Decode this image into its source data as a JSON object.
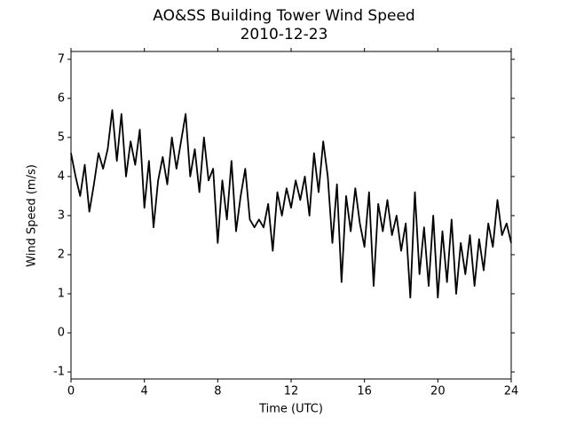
{
  "chart_data": {
    "type": "line",
    "title": "AO&SS Building Tower Wind Speed",
    "subtitle": "2010-12-23",
    "x_label": "Time (UTC)",
    "y_label": "Wind Speed (m/s)",
    "x": [
      0,
      0.25,
      0.5,
      0.75,
      1,
      1.25,
      1.5,
      1.75,
      2,
      2.25,
      2.5,
      2.75,
      3,
      3.25,
      3.5,
      3.75,
      4,
      4.25,
      4.5,
      4.75,
      5,
      5.25,
      5.5,
      5.75,
      6,
      6.25,
      6.5,
      6.75,
      7,
      7.25,
      7.5,
      7.75,
      8,
      8.25,
      8.5,
      8.75,
      9,
      9.25,
      9.5,
      9.75,
      10,
      10.25,
      10.5,
      10.75,
      11,
      11.25,
      11.5,
      11.75,
      12,
      12.25,
      12.5,
      12.75,
      13,
      13.25,
      13.5,
      13.75,
      14,
      14.25,
      14.5,
      14.75,
      15,
      15.25,
      15.5,
      15.75,
      16,
      16.25,
      16.5,
      16.75,
      17,
      17.25,
      17.5,
      17.75,
      18,
      18.25,
      18.5,
      18.75,
      19,
      19.25,
      19.5,
      19.75,
      20,
      20.25,
      20.5,
      20.75,
      21,
      21.25,
      21.5,
      21.75,
      22,
      22.25,
      22.5,
      22.75,
      23,
      23.25,
      23.5,
      23.75,
      24
    ],
    "series": [
      {
        "name": "Wind Speed",
        "color": "#000000",
        "values": [
          4.6,
          4.0,
          3.5,
          4.3,
          3.1,
          3.8,
          4.6,
          4.2,
          4.7,
          5.7,
          4.4,
          5.6,
          4.0,
          4.9,
          4.3,
          5.2,
          3.2,
          4.4,
          2.7,
          3.9,
          4.5,
          3.8,
          5.0,
          4.2,
          4.9,
          5.6,
          4.0,
          4.7,
          3.6,
          5.0,
          3.9,
          4.2,
          2.3,
          3.9,
          2.9,
          4.4,
          2.6,
          3.5,
          4.2,
          2.9,
          2.7,
          2.9,
          2.7,
          3.3,
          2.1,
          3.6,
          3.0,
          3.7,
          3.2,
          3.9,
          3.4,
          4.0,
          3.0,
          4.6,
          3.6,
          4.9,
          4.0,
          2.3,
          3.8,
          1.3,
          3.5,
          2.6,
          3.7,
          2.8,
          2.2,
          3.6,
          1.2,
          3.3,
          2.6,
          3.4,
          2.5,
          3.0,
          2.1,
          2.8,
          0.9,
          3.6,
          1.5,
          2.7,
          1.2,
          3.0,
          0.9,
          2.6,
          1.3,
          2.9,
          1.0,
          2.3,
          1.5,
          2.5,
          1.2,
          2.4,
          1.6,
          2.8,
          2.2,
          3.4,
          2.5,
          2.8,
          2.3
        ]
      }
    ],
    "xlim": [
      0,
      24
    ],
    "ylim": [
      -1.18,
      7.2
    ],
    "xticks": [
      0,
      4,
      8,
      12,
      16,
      20,
      24
    ],
    "yticks": [
      -1,
      0,
      1,
      2,
      3,
      4,
      5,
      6,
      7
    ],
    "grid": false
  }
}
